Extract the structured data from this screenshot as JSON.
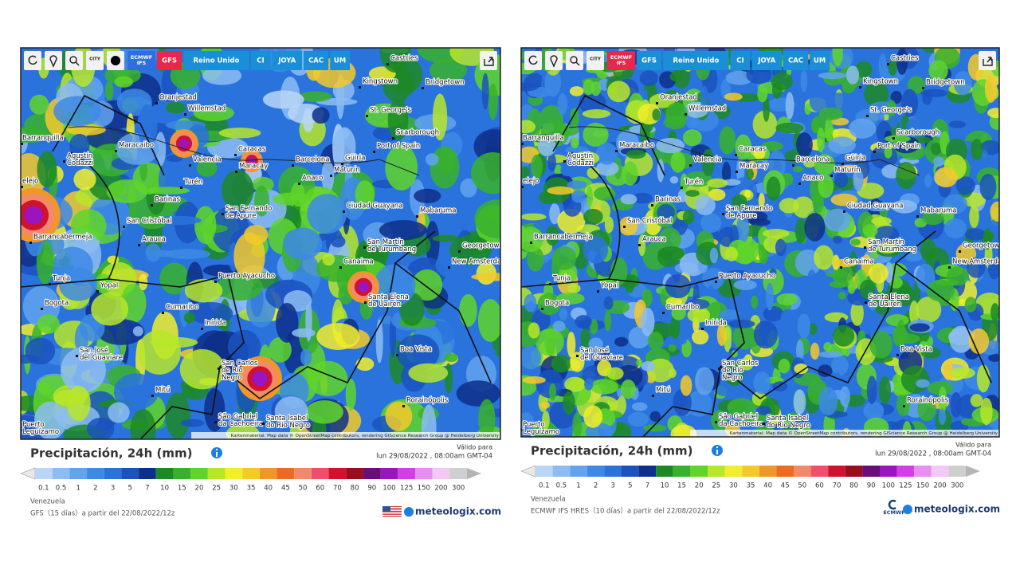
{
  "panels": [
    {
      "toolbar": {
        "city_icon": "CITY",
        "buttons": [
          "ECMWF\nIFS",
          "GFS",
          "Reino Unido",
          "CI",
          "JOYA",
          "CAC",
          "UM"
        ],
        "active": 1,
        "highlight": 0,
        "dot_icon": true
      },
      "cities": [
        "Castries",
        "Kingstown",
        "Bridgetown",
        "Oranjestad",
        "Willemstad",
        "St. George's",
        "Scarborough",
        "Barranquilla",
        "Port of Spain",
        "Maracaibo",
        "Caracas",
        "Agustín\nCodazzi",
        "Valencia",
        "Barcelona",
        "Güiria",
        "Maracay",
        "Maturín",
        "Anaco",
        "Turén",
        "elejo",
        "Barinas",
        "Ciudad Guayana",
        "Mabaruma",
        "San Fernando\nde Apure",
        "San Cristóbal",
        "Barrancabermeja",
        "Arauca",
        "San Martín\nde Turumbang",
        "Georgetown",
        "New Amsterdam",
        "Canaima",
        "Tunja",
        "Puerto Ayacucho",
        "Yopal",
        "Bogota",
        "Santa Elena\nde Uairén",
        "Cumaribo",
        "Inírida",
        "Boa Vista",
        "San José\ndel Guaviare",
        "San Carlos\nde Río\nNegro",
        "Mitú",
        "Rorainópolis",
        "São Gabriel\nda Cachoeira",
        "Santa Isabel\ndo Rio Negro",
        "Puerto\nLeguízamo"
      ],
      "attribution": "Kartenmaterial: Map data © OpenStreetMap contributors, rendering GIScience Research Group @ Heidelberg University",
      "legend": {
        "title": "Precipitación, 24h (mm)",
        "valid_label": "Válido para",
        "valid_date": "lun 29/08/2022 , 08:00am GMT-04",
        "values": [
          0.1,
          0.5,
          1,
          2,
          3,
          5,
          7,
          10,
          15,
          20,
          25,
          30,
          35,
          40,
          45,
          50,
          60,
          70,
          80,
          90,
          100,
          125,
          150,
          200,
          300
        ],
        "colors": [
          "#b9d6f7",
          "#8dbcf2",
          "#63a3ee",
          "#3d8ae6",
          "#2a73dc",
          "#1a52bf",
          "#0e2f8a",
          "#1c8a24",
          "#38b22b",
          "#5fd52a",
          "#b7e62a",
          "#f1ee2c",
          "#f3c92c",
          "#f0962a",
          "#ee6a22",
          "#f28a6a",
          "#ef4f6b",
          "#d0122c",
          "#9a0d1c",
          "#6a0d7a",
          "#9a14c0",
          "#d33ee6",
          "#e88ef0",
          "#f3c8f4",
          "#cfcfcf"
        ],
        "region": "Venezuela",
        "model": "GFS（15 días）a partir del 22/08/2022/12z"
      },
      "brand": "meteologix.com"
    },
    {
      "toolbar": {
        "city_icon": "CITY",
        "buttons": [
          "ECMWF\nIFS",
          "GFS",
          "Reino Unido",
          "CI",
          "JOYA",
          "CAC",
          "UM"
        ],
        "active": 0,
        "dot_icon": false
      },
      "cities": [
        "Castries",
        "Kingstown",
        "Bridgetown",
        "Oranjestad",
        "Willemstad",
        "St. George's",
        "Scarborough",
        "Barranquilla",
        "Port of Spain",
        "Maracaibo",
        "Caracas",
        "Agustín\nCodazzi",
        "Valencia",
        "Barcelona",
        "Güiria",
        "Maracay",
        "Maturín",
        "Anaco",
        "Turén",
        "elejo",
        "Barinas",
        "Ciudad Guayana",
        "Mabaruma",
        "San Fernando\nde Apure",
        "San Cristóbal",
        "Barrancabermeja",
        "Arauca",
        "San Martín\nde Turumbang",
        "Georgetown",
        "New Amsterdam",
        "Canaima",
        "Tunja",
        "Puerto Ayacucho",
        "Yopal",
        "Bogota",
        "Santa Elena\nde Uairén",
        "Cumaribo",
        "Inírida",
        "Boa Vista",
        "San José\ndel Guaviare",
        "San Carlos\nde Río\nNegro",
        "Mitú",
        "Rorainópolis",
        "São Gabriel\nda Cachoeira",
        "Santa Isabel\ndo Rio Negro",
        "Puerto\nLeguízamo"
      ],
      "attribution": "Kartenmaterial: Map data © OpenStreetMap contributors, rendering GIScience Research Group @ Heidelberg University",
      "legend": {
        "title": "Precipitación, 24h (mm)",
        "valid_label": "Válido para",
        "valid_date": "lun 29/08/2022 , 08:00am GMT-04",
        "values": [
          0.1,
          0.5,
          1,
          2,
          3,
          5,
          7,
          10,
          15,
          20,
          25,
          30,
          35,
          40,
          45,
          50,
          60,
          70,
          80,
          90,
          100,
          125,
          150,
          200,
          300
        ],
        "colors": [
          "#b9d6f7",
          "#8dbcf2",
          "#63a3ee",
          "#3d8ae6",
          "#2a73dc",
          "#1a52bf",
          "#0e2f8a",
          "#1c8a24",
          "#38b22b",
          "#5fd52a",
          "#b7e62a",
          "#f1ee2c",
          "#f3c92c",
          "#f0962a",
          "#ee6a22",
          "#f28a6a",
          "#ef4f6b",
          "#d0122c",
          "#9a0d1c",
          "#6a0d7a",
          "#9a14c0",
          "#d33ee6",
          "#e88ef0",
          "#f3c8f4",
          "#cfcfcf"
        ],
        "region": "Venezuela",
        "model": "ECMWF IFS HRES（10 días）a partir del 22/08/2022/12z"
      },
      "brand": "meteologix.com",
      "logo_text": "ECMWF"
    }
  ]
}
